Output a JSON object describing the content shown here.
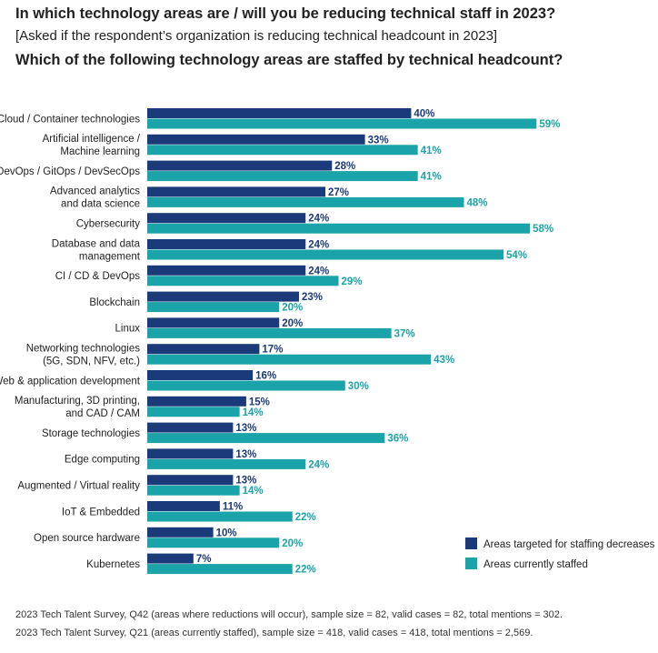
{
  "header": {
    "title": "In which technology areas are / will you be reducing technical staff in 2023?",
    "subtitle": "[Asked if the respondent’s organization is reducing technical headcount in 2023]",
    "question": "Which of the following technology areas are staffed by technical headcount?"
  },
  "chart_data": {
    "type": "bar",
    "orientation": "horizontal",
    "categories": [
      [
        "Cloud / Container technologies"
      ],
      [
        "Artificial intelligence /",
        "Machine learning"
      ],
      [
        "DevOps / GitOps / DevSecOps"
      ],
      [
        "Advanced analytics",
        "and data science"
      ],
      [
        "Cybersecurity"
      ],
      [
        "Database and data",
        "management"
      ],
      [
        "CI / CD & DevOps"
      ],
      [
        "Blockchain"
      ],
      [
        "Linux"
      ],
      [
        "Networking technologies",
        "(5G, SDN, NFV, etc.)"
      ],
      [
        "Web & application development"
      ],
      [
        "Manufacturing, 3D printing,",
        "and CAD / CAM"
      ],
      [
        "Storage technologies"
      ],
      [
        "Edge computing"
      ],
      [
        "Augmented / Virtual reality"
      ],
      [
        "IoT & Embedded"
      ],
      [
        "Open source hardware"
      ],
      [
        "Kubernetes"
      ]
    ],
    "series": [
      {
        "name": "Areas targeted for staffing decreases",
        "color": "#1b3a7a",
        "values": [
          40,
          33,
          28,
          27,
          24,
          24,
          24,
          23,
          20,
          17,
          16,
          15,
          13,
          13,
          13,
          11,
          10,
          7
        ]
      },
      {
        "name": "Areas currently staffed",
        "color": "#1aa3a8",
        "values": [
          59,
          41,
          41,
          48,
          58,
          54,
          29,
          20,
          37,
          43,
          30,
          14,
          36,
          24,
          14,
          22,
          20,
          22
        ]
      }
    ],
    "value_suffix": "%",
    "xlim": [
      0,
      100
    ],
    "legend_position": "bottom-right",
    "title": "",
    "xlabel": "",
    "ylabel": ""
  },
  "footnotes": [
    "2023 Tech Talent Survey, Q42 (areas where reductions will occur), sample size = 82, valid cases = 82, total mentions = 302.",
    "2023 Tech Talent Survey, Q21 (areas currently staffed), sample size = 418, valid cases = 418, total mentions = 2,569."
  ]
}
